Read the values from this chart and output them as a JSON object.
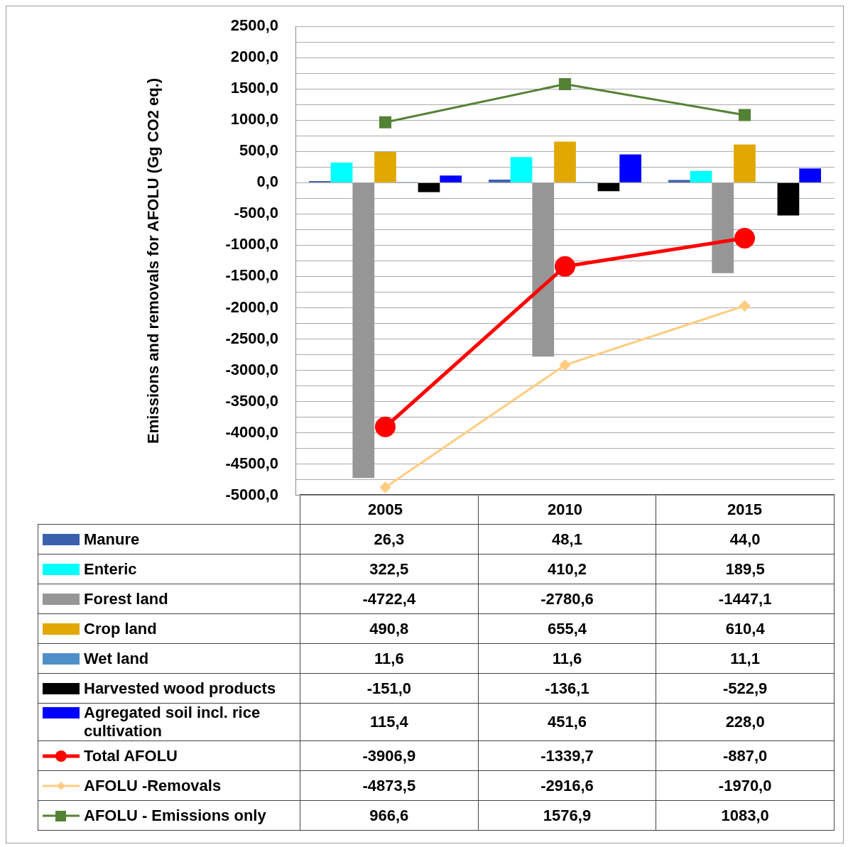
{
  "chart_data": {
    "type": "bar",
    "ylabel": "Emissions and removals for AFOLU (Gg CO2 eq.)",
    "categories": [
      "2005",
      "2010",
      "2015"
    ],
    "series": [
      {
        "name": "Manure",
        "color": "#3a5fad",
        "values": [
          26.3,
          48.1,
          44.0
        ],
        "value_labels": [
          "26,3",
          "48,1",
          "44,0"
        ]
      },
      {
        "name": "Enteric",
        "color": "#00ffff",
        "values": [
          322.5,
          410.2,
          189.5
        ],
        "value_labels": [
          "322,5",
          "410,2",
          "189,5"
        ]
      },
      {
        "name": "Forest land",
        "color": "#969696",
        "values": [
          -4722.4,
          -2780.6,
          -1447.1
        ],
        "value_labels": [
          "-4722,4",
          "-2780,6",
          "-1447,1"
        ]
      },
      {
        "name": "Crop land",
        "color": "#e0a800",
        "values": [
          490.8,
          655.4,
          610.4
        ],
        "value_labels": [
          "490,8",
          "655,4",
          "610,4"
        ]
      },
      {
        "name": "Wet land",
        "color": "#4f8fc8",
        "values": [
          11.6,
          11.6,
          11.1
        ],
        "value_labels": [
          "11,6",
          "11,6",
          "11,1"
        ]
      },
      {
        "name": "Harvested wood products",
        "color": "#000000",
        "values": [
          -151.0,
          -136.1,
          -522.9
        ],
        "value_labels": [
          "-151,0",
          "-136,1",
          "-522,9"
        ]
      },
      {
        "name": "Agregated soil incl. rice cultivation",
        "color": "#0000ff",
        "values": [
          115.4,
          451.6,
          228.0
        ],
        "value_labels": [
          "115,4",
          "451,6",
          "228,0"
        ]
      },
      {
        "name": "Total AFOLU",
        "type": "line",
        "marker": "circle",
        "color": "#ff0000",
        "values": [
          -3906.9,
          -1339.7,
          -887.0
        ],
        "value_labels": [
          "-3906,9",
          "-1339,7",
          "-887,0"
        ]
      },
      {
        "name": "AFOLU -Removals",
        "type": "line",
        "marker": "diamond",
        "color": "#ffcc80",
        "values": [
          -4873.5,
          -2916.6,
          -1970.0
        ],
        "value_labels": [
          "-4873,5",
          "-2916,6",
          "-1970,0"
        ]
      },
      {
        "name": "AFOLU - Emissions only",
        "type": "line",
        "marker": "square",
        "color": "#548235",
        "values": [
          966.6,
          1576.9,
          1083.0
        ],
        "value_labels": [
          "966,6",
          "1576,9",
          "1083,0"
        ]
      }
    ],
    "ylim": [
      -5000,
      2500
    ],
    "yticks": [
      {
        "value": -5000,
        "label": "-5000,0"
      },
      {
        "value": -4750,
        "label": null
      },
      {
        "value": -4500,
        "label": "-4500,0"
      },
      {
        "value": -4250,
        "label": null
      },
      {
        "value": -4000,
        "label": "-4000,0"
      },
      {
        "value": -3750,
        "label": null
      },
      {
        "value": -3500,
        "label": "-3500,0"
      },
      {
        "value": -3250,
        "label": null
      },
      {
        "value": -3000,
        "label": "-3000,0"
      },
      {
        "value": -2750,
        "label": null
      },
      {
        "value": -2500,
        "label": "-2500,0"
      },
      {
        "value": -2250,
        "label": null
      },
      {
        "value": -2000,
        "label": "-2000,0"
      },
      {
        "value": -1750,
        "label": null
      },
      {
        "value": -1500,
        "label": "-1500,0"
      },
      {
        "value": -1250,
        "label": null
      },
      {
        "value": -1000,
        "label": "-1000,0"
      },
      {
        "value": -750,
        "label": null
      },
      {
        "value": -500,
        "label": "-500,0"
      },
      {
        "value": -250,
        "label": null
      },
      {
        "value": 0,
        "label": "0,0"
      },
      {
        "value": 250,
        "label": null
      },
      {
        "value": 500,
        "label": "500,0"
      },
      {
        "value": 750,
        "label": null
      },
      {
        "value": 1000,
        "label": "1000,0"
      },
      {
        "value": 1250,
        "label": null
      },
      {
        "value": 1500,
        "label": "1500,0"
      },
      {
        "value": 1750,
        "label": null
      },
      {
        "value": 2000,
        "label": "2000,0"
      },
      {
        "value": 2250,
        "label": null
      },
      {
        "value": 2500,
        "label": "2500,0"
      }
    ],
    "grid": "y",
    "legend": "bottom"
  }
}
